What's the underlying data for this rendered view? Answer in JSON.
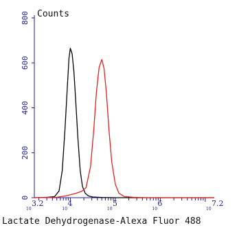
{
  "chart_data": {
    "type": "line",
    "ylabel": "Counts",
    "xlabel": "Lactate Dehydrogenase-Alexa Fluor 488",
    "x_scale": "log",
    "xlim": [
      3.2,
      7.2
    ],
    "ylim": [
      0,
      800
    ],
    "y_ticks": [
      0,
      200,
      400,
      600,
      800
    ],
    "x_ticks": [
      {
        "value": 3.2,
        "base": "10",
        "exp": "3.2"
      },
      {
        "value": 4,
        "base": "10",
        "exp": "4"
      },
      {
        "value": 5,
        "base": "10",
        "exp": "5"
      },
      {
        "value": 6,
        "base": "10",
        "exp": "6"
      },
      {
        "value": 7.2,
        "base": "10",
        "exp": "7.2"
      }
    ],
    "series": [
      {
        "color": "#000000",
        "x": [
          3.2,
          3.5,
          3.65,
          3.75,
          3.82,
          3.88,
          3.93,
          3.97,
          4.0,
          4.04,
          4.08,
          4.12,
          4.17,
          4.22,
          4.27,
          4.33,
          4.4,
          4.5,
          4.7,
          5.0,
          7.2
        ],
        "y": [
          0,
          2,
          5,
          30,
          120,
          300,
          480,
          620,
          665,
          640,
          560,
          430,
          260,
          120,
          50,
          20,
          8,
          3,
          1,
          0,
          0
        ]
      },
      {
        "color": "#e02020",
        "x": [
          3.2,
          3.7,
          3.9,
          4.1,
          4.25,
          4.35,
          4.45,
          4.52,
          4.58,
          4.64,
          4.7,
          4.75,
          4.8,
          4.86,
          4.92,
          5.0,
          5.08,
          5.2,
          5.4,
          5.7,
          7.2
        ],
        "y": [
          0,
          2,
          8,
          18,
          28,
          45,
          140,
          300,
          470,
          580,
          615,
          575,
          470,
          300,
          160,
          60,
          20,
          5,
          2,
          0,
          0
        ]
      }
    ]
  }
}
